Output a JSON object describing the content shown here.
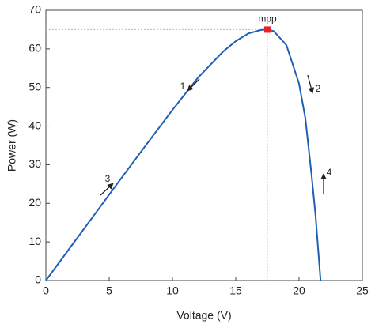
{
  "chart_data": {
    "type": "line",
    "x_label": "Voltage (V)",
    "y_label": "Power (W)",
    "x": [
      0,
      2,
      4,
      6,
      8,
      10,
      12,
      14,
      15,
      16,
      17,
      17.5,
      18,
      19,
      20,
      20.5,
      21,
      21.3,
      21.5,
      21.7
    ],
    "values": [
      0,
      8.9,
      17.8,
      26.7,
      35.5,
      44.2,
      52.5,
      59.3,
      62,
      64,
      64.9,
      65,
      64.6,
      61,
      51,
      42,
      27,
      17,
      8.5,
      0
    ],
    "color": "#1f5fb4",
    "mpp": {
      "label": "mpp",
      "x": 17.5,
      "y": 65,
      "color": "#e8202a"
    },
    "annotations": [
      "1",
      "2",
      "3",
      "4"
    ],
    "xlim": [
      0,
      25
    ],
    "xticks": [
      0,
      5,
      10,
      15,
      20,
      25
    ],
    "ylim": [
      0,
      70
    ],
    "yticks": [
      0,
      10,
      20,
      30,
      40,
      50,
      60,
      70
    ],
    "grid": false
  }
}
